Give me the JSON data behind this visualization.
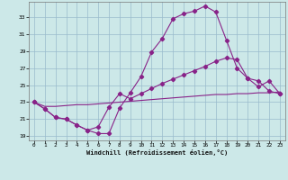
{
  "xlabel": "Windchill (Refroidissement éolien,°C)",
  "background_color": "#cce8e8",
  "grid_color": "#99bbcc",
  "line_color": "#882288",
  "xlim_min": -0.5,
  "xlim_max": 23.5,
  "ylim_min": 18.5,
  "ylim_max": 34.8,
  "yticks": [
    19,
    21,
    23,
    25,
    27,
    29,
    31,
    33
  ],
  "xticks": [
    0,
    1,
    2,
    3,
    4,
    5,
    6,
    7,
    8,
    9,
    10,
    11,
    12,
    13,
    14,
    15,
    16,
    17,
    18,
    19,
    20,
    21,
    22,
    23
  ],
  "curve1_x": [
    0,
    1,
    2,
    3,
    4,
    5,
    6,
    7,
    8,
    9,
    10,
    11,
    12,
    13,
    14,
    15,
    16,
    17,
    18,
    19,
    20,
    21,
    22,
    23
  ],
  "curve1_y": [
    23.0,
    22.2,
    21.2,
    21.0,
    20.3,
    19.7,
    19.3,
    19.3,
    22.3,
    24.1,
    26.0,
    28.9,
    30.5,
    32.8,
    33.4,
    33.7,
    34.3,
    33.6,
    30.3,
    27.0,
    25.8,
    25.5,
    24.3,
    24.0
  ],
  "curve2_x": [
    0,
    1,
    2,
    3,
    4,
    5,
    6,
    7,
    8,
    9,
    10,
    11,
    12,
    13,
    14,
    15,
    16,
    17,
    18,
    19,
    20,
    21,
    22,
    23
  ],
  "curve2_y": [
    23.0,
    22.2,
    21.2,
    21.0,
    20.3,
    19.7,
    20.1,
    22.4,
    24.0,
    23.4,
    24.0,
    24.6,
    25.2,
    25.7,
    26.2,
    26.7,
    27.2,
    27.8,
    28.2,
    28.0,
    25.8,
    24.8,
    25.5,
    24.0
  ],
  "curve3_x": [
    0,
    1,
    2,
    3,
    4,
    5,
    6,
    7,
    8,
    9,
    10,
    11,
    12,
    13,
    14,
    15,
    16,
    17,
    18,
    19,
    20,
    21,
    22,
    23
  ],
  "curve3_y": [
    23.0,
    22.5,
    22.5,
    22.6,
    22.7,
    22.7,
    22.8,
    22.9,
    23.0,
    23.1,
    23.2,
    23.3,
    23.4,
    23.5,
    23.6,
    23.7,
    23.8,
    23.9,
    23.9,
    24.0,
    24.0,
    24.1,
    24.1,
    24.2
  ]
}
